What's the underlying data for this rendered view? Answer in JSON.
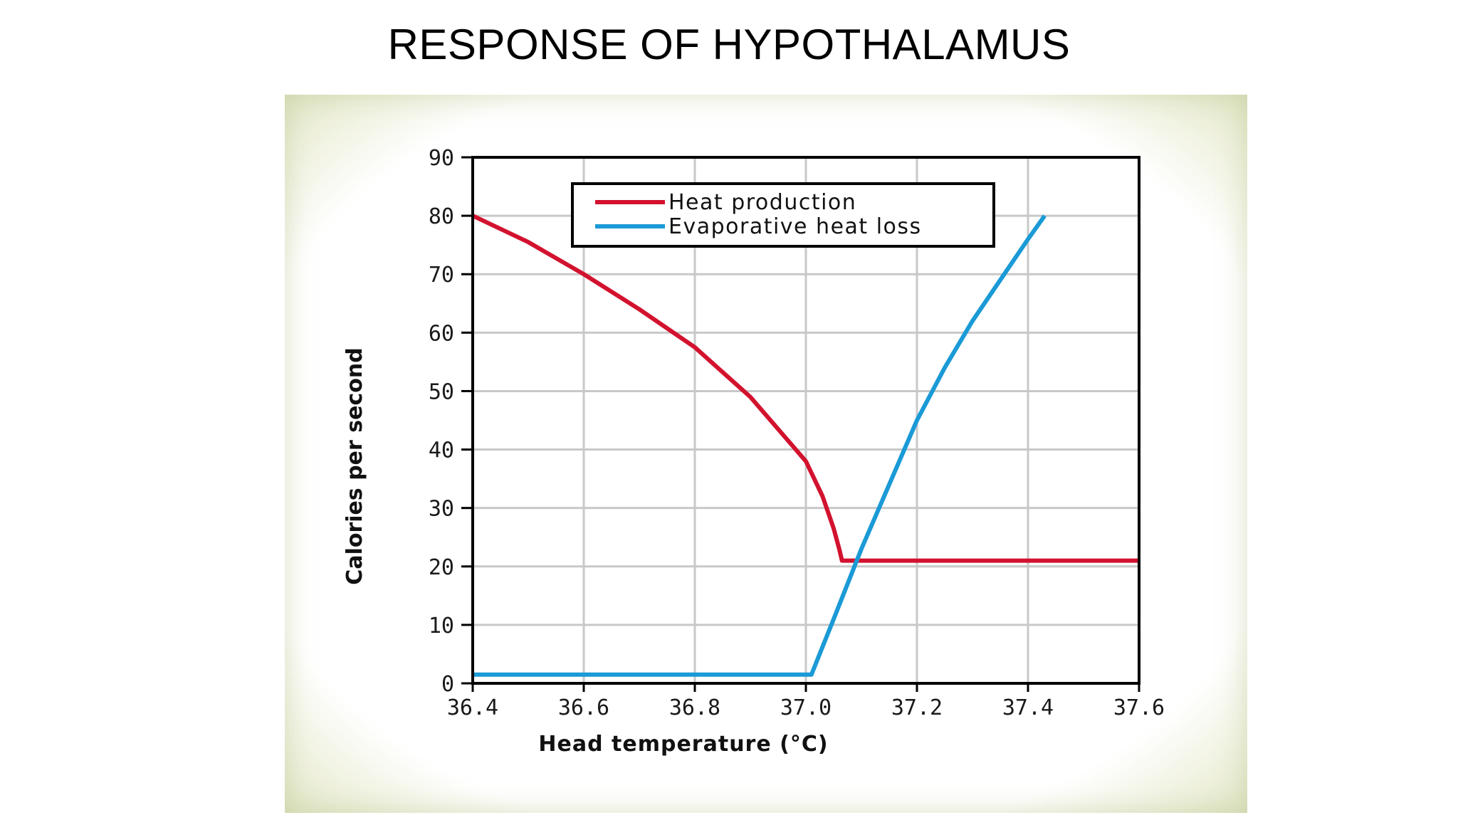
{
  "slide": {
    "title": "RESPONSE OF HYPOTHALAMUS"
  },
  "chart_data": {
    "type": "line",
    "title": "",
    "xlabel": "Head temperature (°C)",
    "ylabel": "Calories per second",
    "xlim": [
      36.4,
      37.6
    ],
    "ylim": [
      0,
      90
    ],
    "x_ticks": [
      "36.4",
      "36.6",
      "36.8",
      "37.0",
      "37.2",
      "37.4",
      "37.6"
    ],
    "x_tick_values": [
      36.4,
      36.6,
      36.8,
      37.0,
      37.2,
      37.4,
      37.6
    ],
    "y_ticks": [
      "0",
      "10",
      "20",
      "30",
      "40",
      "50",
      "60",
      "70",
      "80",
      "90"
    ],
    "y_tick_values": [
      0,
      10,
      20,
      30,
      40,
      50,
      60,
      70,
      80,
      90
    ],
    "grid": true,
    "legend_position": "top-center",
    "series": [
      {
        "name": "Heat production",
        "color": "#d2122e",
        "x": [
          36.4,
          36.5,
          36.6,
          36.7,
          36.8,
          36.9,
          37.0,
          37.03,
          37.05,
          37.06,
          37.065,
          37.1,
          37.2,
          37.3,
          37.4,
          37.5,
          37.6
        ],
        "y": [
          80,
          75.5,
          70,
          64,
          57.5,
          49,
          38,
          32,
          26.5,
          23,
          21,
          21,
          21,
          21,
          21,
          21,
          21
        ]
      },
      {
        "name": "Evaporative heat loss",
        "color": "#1a9ad6",
        "x": [
          36.4,
          36.6,
          36.8,
          37.0,
          37.01,
          37.05,
          37.1,
          37.15,
          37.2,
          37.25,
          37.3,
          37.35,
          37.4,
          37.43
        ],
        "y": [
          1.5,
          1.5,
          1.5,
          1.5,
          1.5,
          11,
          23,
          34,
          45,
          54,
          62,
          69,
          76,
          80
        ]
      }
    ]
  }
}
